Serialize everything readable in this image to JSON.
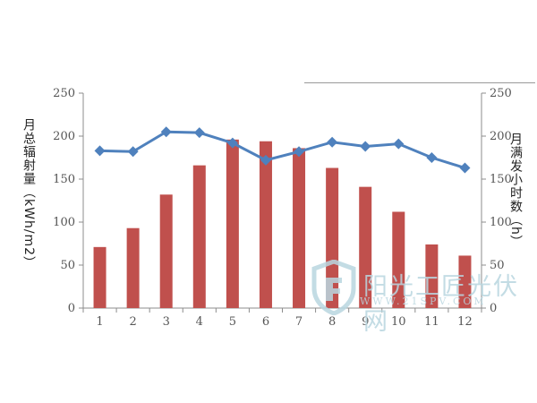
{
  "chart_data": {
    "type": "bar",
    "categories": [
      "1",
      "2",
      "3",
      "4",
      "5",
      "6",
      "7",
      "8",
      "9",
      "10",
      "11",
      "12"
    ],
    "series": [
      {
        "kind": "bar",
        "axis": "left",
        "color": "#c0504d",
        "values": [
          71,
          93,
          132,
          166,
          196,
          194,
          186,
          163,
          141,
          112,
          74,
          61
        ]
      },
      {
        "kind": "line",
        "axis": "right",
        "color": "#4f81bd",
        "values": [
          183,
          182,
          205,
          204,
          192,
          172,
          182,
          193,
          188,
          191,
          175,
          163
        ]
      }
    ],
    "ylabel": "月总辐射量（kWh/m2）",
    "ylabel_right": "月满发小时数（h）",
    "ylim": [
      0,
      250
    ],
    "ylim_right": [
      0,
      250
    ],
    "yticks": [
      "0",
      "50",
      "100",
      "150",
      "200",
      "250"
    ],
    "yticks_right": [
      "0",
      "50",
      "100",
      "150",
      "200",
      "250"
    ],
    "grid": false,
    "legend": "none"
  },
  "watermark": {
    "title": "阳光工匠光伏网",
    "url": "WWW.21SPV.COM"
  }
}
